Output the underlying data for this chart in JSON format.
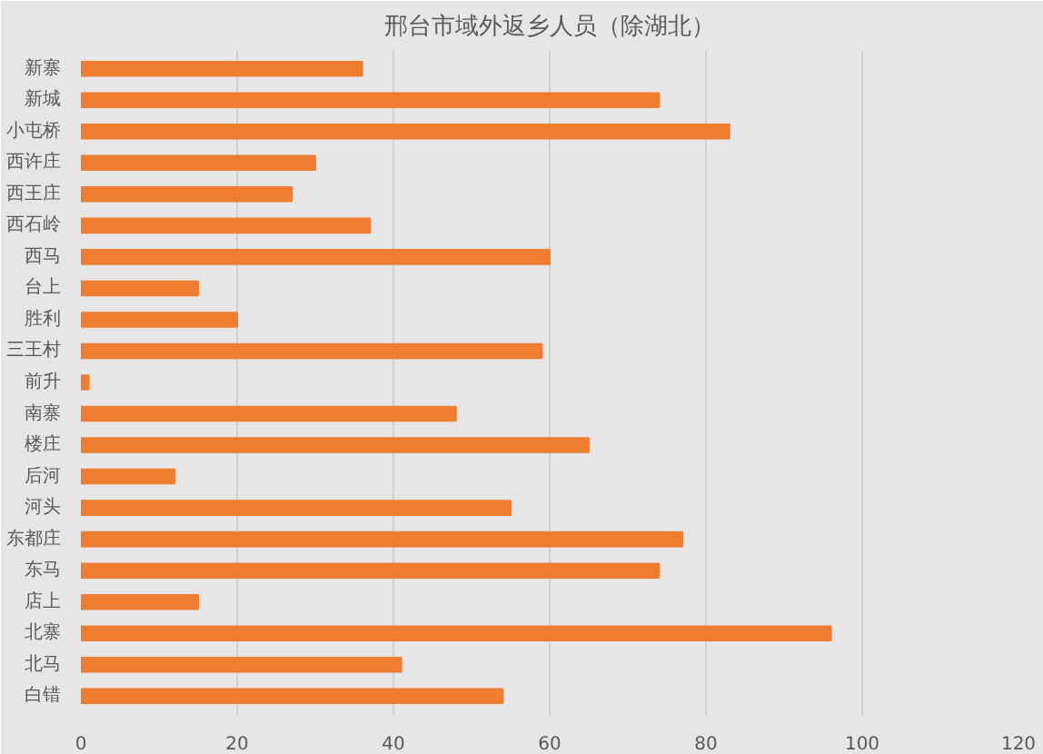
{
  "chart_data": {
    "type": "bar",
    "orientation": "horizontal",
    "title": "邢台市域外返乡人员（除湖北）",
    "categories": [
      "新寨",
      "新城",
      "小屯桥",
      "西许庄",
      "西王庄",
      "西石岭",
      "西马",
      "台上",
      "胜利",
      "三王村",
      "前升",
      "南寨",
      "楼庄",
      "后河",
      "河头",
      "东都庄",
      "东马",
      "店上",
      "北寨",
      "北马",
      "白错"
    ],
    "values": [
      36,
      74,
      83,
      30,
      27,
      37,
      60,
      15,
      20,
      59,
      1,
      48,
      65,
      12,
      55,
      77,
      74,
      15,
      96,
      41,
      54
    ],
    "color": "#ed7d31",
    "xlim": [
      0,
      120
    ],
    "xticks": [
      0,
      20,
      40,
      60,
      80,
      100,
      120
    ],
    "grid": "x"
  }
}
